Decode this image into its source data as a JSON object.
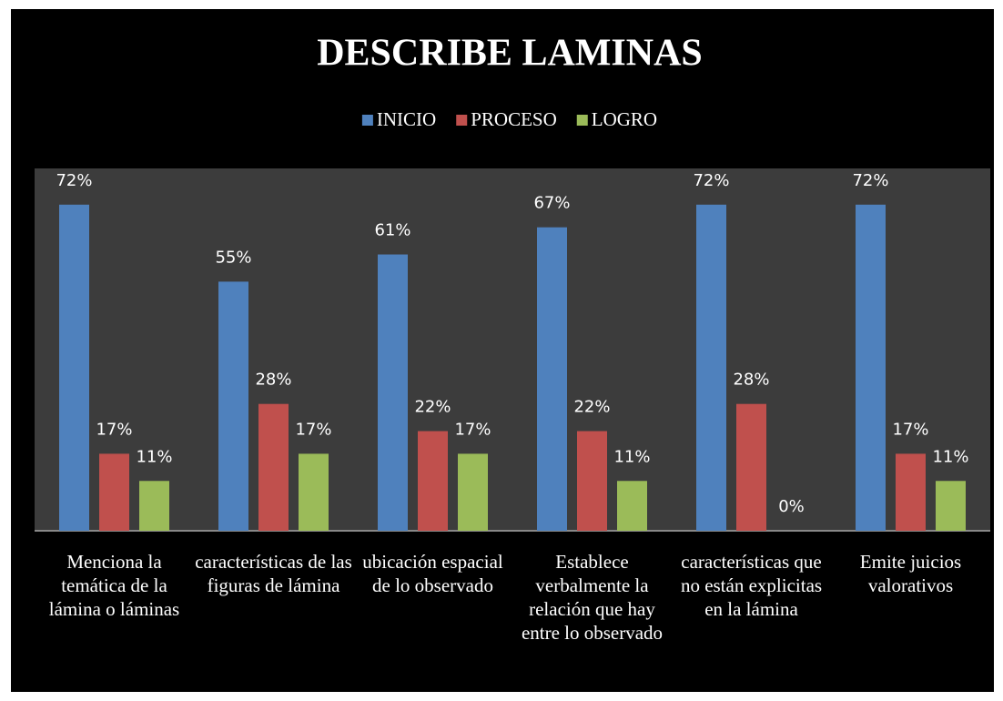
{
  "chart_data": {
    "type": "bar",
    "title": "DESCRIBE LAMINAS",
    "categories": [
      "Menciona la temática de la lámina o láminas",
      "características de las figuras de lámina",
      "ubicación espacial de  lo observado",
      "Establece verbalmente la relación que hay entre  lo observado",
      "características que no están explicitas en la lámina",
      "Emite juicios valorativos"
    ],
    "series": [
      {
        "name": "INICIO",
        "color": "#4f81bd",
        "values": [
          72,
          55,
          61,
          67,
          72,
          72
        ],
        "value_labels": [
          "72%",
          "55%",
          "61%",
          "67%",
          "72%",
          "72%"
        ]
      },
      {
        "name": "PROCESO",
        "color": "#c0504d",
        "values": [
          17,
          28,
          22,
          22,
          28,
          17
        ],
        "value_labels": [
          "17%",
          "28%",
          "22%",
          "22%",
          "28%",
          "17%"
        ]
      },
      {
        "name": "LOGRO",
        "color": "#9bbb59",
        "values": [
          11,
          17,
          17,
          11,
          0,
          11
        ],
        "value_labels": [
          "11%",
          "17%",
          "17%",
          "11%",
          "0%",
          "11%"
        ]
      }
    ],
    "ylim": [
      0,
      80
    ],
    "legend": "top"
  }
}
